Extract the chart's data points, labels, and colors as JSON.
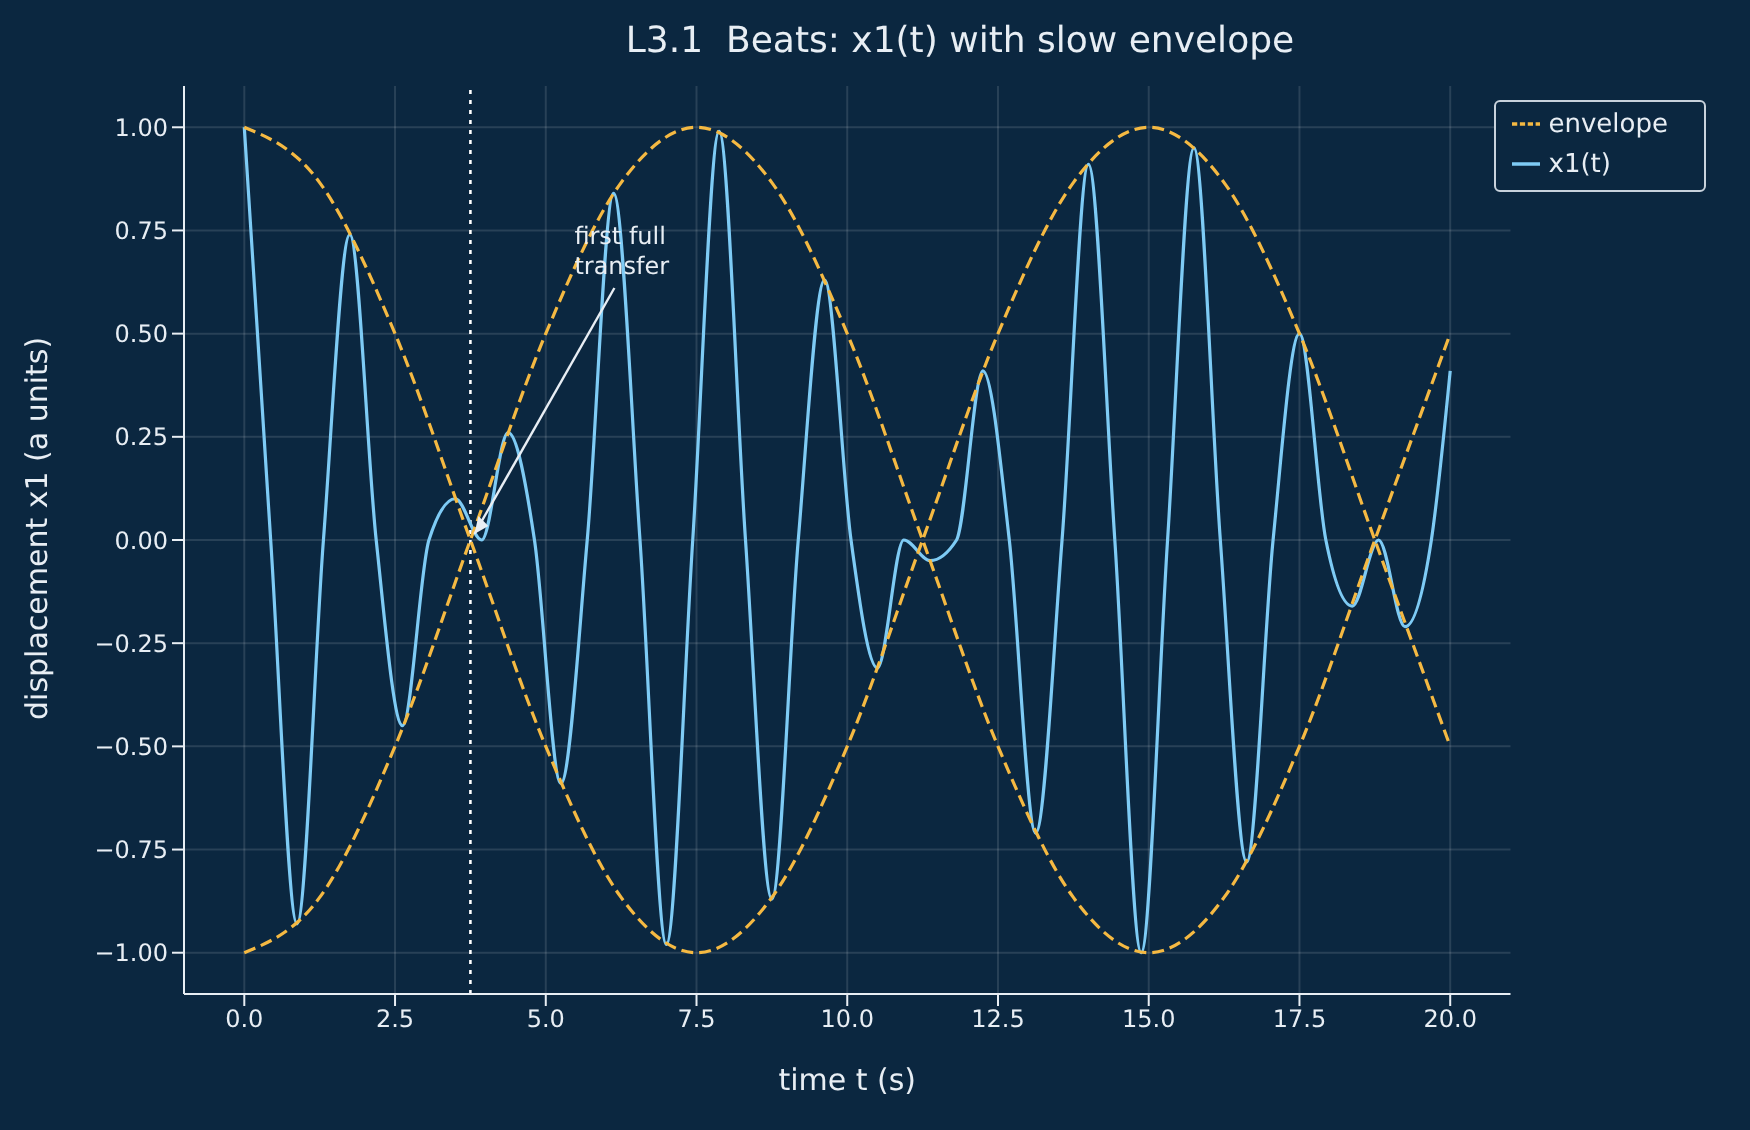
{
  "chart_data": {
    "type": "line",
    "title": "L3.1  Beats: x1(t) with slow envelope",
    "xlabel": "time t (s)",
    "ylabel": "displacement x1 (a units)",
    "xlim": [
      -1,
      21
    ],
    "ylim": [
      -1.1,
      1.1
    ],
    "xticks": [
      {
        "value": 0,
        "label": "0.0"
      },
      {
        "value": 2.5,
        "label": "2.5"
      },
      {
        "value": 5,
        "label": "5.0"
      },
      {
        "value": 7.5,
        "label": "7.5"
      },
      {
        "value": 10,
        "label": "10.0"
      },
      {
        "value": 12.5,
        "label": "12.5"
      },
      {
        "value": 15,
        "label": "15.0"
      },
      {
        "value": 17.5,
        "label": "17.5"
      },
      {
        "value": 20,
        "label": "20.0"
      }
    ],
    "yticks": [
      {
        "value": -1,
        "label": "−1.00"
      },
      {
        "value": -0.75,
        "label": "−0.75"
      },
      {
        "value": -0.5,
        "label": "−0.50"
      },
      {
        "value": -0.25,
        "label": "−0.25"
      },
      {
        "value": 0,
        "label": "0.00"
      },
      {
        "value": 0.25,
        "label": "0.25"
      },
      {
        "value": 0.5,
        "label": "0.50"
      },
      {
        "value": 0.75,
        "label": "0.75"
      },
      {
        "value": 1,
        "label": "1.00"
      }
    ],
    "grid": true,
    "legend": "top right",
    "marker": "none",
    "series": [
      {
        "name": "x1(t)",
        "color": "#7ecbf5",
        "line_style": "solid",
        "x": [
          0,
          0.4375,
          0.875,
          1.3125,
          1.75,
          2.1875,
          2.625,
          3.0625,
          3.5,
          3.9375,
          4.375,
          4.8125,
          5.25,
          5.6875,
          6.125,
          6.5625,
          7,
          7.4375,
          7.875,
          8.3125,
          8.75,
          9.1875,
          9.625,
          10.0625,
          10.5,
          10.9375,
          11.375,
          11.8125,
          12.25,
          12.6875,
          13.125,
          13.5625,
          14,
          14.4375,
          14.875,
          15.3125,
          15.75,
          16.1875,
          16.625,
          17.0625,
          17.5,
          17.9375,
          18.375,
          18.8125,
          19.25,
          19.6875,
          20
        ],
        "values": [
          1,
          0,
          -0.93,
          0,
          0.74,
          0,
          -0.45,
          0,
          0.1,
          0,
          0.26,
          0,
          -0.59,
          0,
          0.84,
          0,
          -0.98,
          0,
          0.99,
          0,
          -0.87,
          0,
          0.63,
          0,
          -0.31,
          0,
          -0.05,
          0,
          0.41,
          0,
          -0.71,
          0,
          0.91,
          0,
          -1,
          0,
          0.95,
          0,
          -0.78,
          0,
          0.5,
          0,
          -0.16,
          0,
          -0.21,
          0,
          0.41
        ]
      },
      {
        "name": "envelope",
        "color": "#f5b942",
        "line_style": "dashed",
        "x": [
          0,
          1.25,
          2.5,
          3.75,
          5,
          6.25,
          7.5,
          8.75,
          10,
          11.25,
          12.5,
          13.75,
          15,
          16.25,
          17.5,
          18.75,
          20
        ],
        "values": [
          1,
          0.866,
          0.5,
          0,
          -0.5,
          -0.866,
          -1,
          -0.866,
          -0.5,
          0,
          0.5,
          0.866,
          1,
          0.866,
          0.5,
          0,
          -0.5
        ]
      },
      {
        "color": "#f5b942",
        "line_style": "dashed",
        "x": [
          0,
          1.25,
          2.5,
          3.75,
          5,
          6.25,
          7.5,
          8.75,
          10,
          11.25,
          12.5,
          13.75,
          15,
          16.25,
          17.5,
          18.75,
          20
        ],
        "values": [
          -1,
          -0.866,
          -0.5,
          0,
          0.5,
          0.866,
          1,
          0.866,
          0.5,
          0,
          -0.5,
          -0.866,
          -1,
          -0.866,
          -0.5,
          0,
          0.5
        ]
      }
    ],
    "ref_lines": [
      {
        "axis": "x",
        "value": 3.75,
        "color": "#ffffff",
        "line_style": "dotted"
      }
    ],
    "annotations": [
      {
        "text": "first full\ntransfer",
        "x": 3.75,
        "y": 0
      }
    ]
  }
}
